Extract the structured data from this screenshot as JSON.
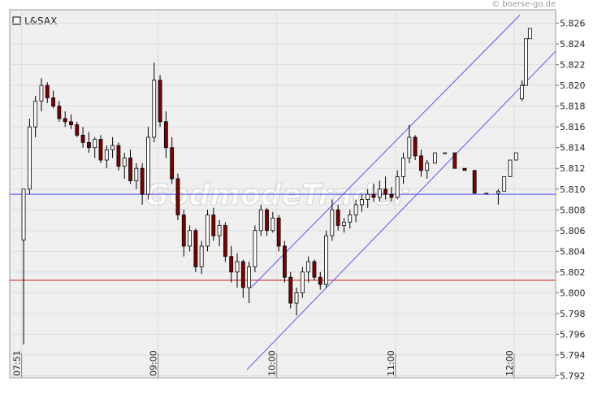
{
  "chart_data": {
    "type": "candlestick",
    "name": "L&SAX",
    "copyright": "© boerse-go.de",
    "watermark": "GodmodeTrader",
    "xlim": [
      465,
      741
    ],
    "xticks": [
      {
        "value": 471,
        "label": "07:51"
      },
      {
        "value": 540,
        "label": "09:00"
      },
      {
        "value": 600,
        "label": "10:00"
      },
      {
        "value": 660,
        "label": "11:00"
      },
      {
        "value": 720,
        "label": "12:00"
      }
    ],
    "ylim": [
      5.7918,
      5.8273
    ],
    "yticks": [
      5.792,
      5.794,
      5.796,
      5.798,
      {
        "value": 5.8,
        "label": "5.800"
      },
      5.802,
      5.804,
      5.806,
      5.808,
      {
        "value": 5.81,
        "label": "5.810"
      },
      5.812,
      5.814,
      5.816,
      5.818,
      {
        "value": 5.82,
        "label": "5.820"
      },
      5.822,
      5.824,
      5.826
    ],
    "grid": true,
    "up_color": "#ffffff",
    "down_color": "#800000",
    "x": [
      472,
      475,
      478,
      481,
      484,
      487,
      490,
      493,
      496,
      499,
      502,
      505,
      508,
      511,
      514,
      517,
      520,
      523,
      526,
      529,
      532,
      535,
      538,
      541,
      544,
      547,
      550,
      553,
      556,
      559,
      562,
      565,
      568,
      571,
      574,
      577,
      580,
      583,
      586,
      589,
      592,
      595,
      598,
      601,
      604,
      607,
      610,
      613,
      616,
      619,
      622,
      625,
      628,
      631,
      634,
      637,
      640,
      643,
      646,
      649,
      652,
      655,
      658,
      661,
      664,
      667,
      670,
      673,
      676,
      680,
      685,
      690,
      695,
      700,
      706,
      712,
      715,
      718,
      721,
      724,
      726,
      728
    ],
    "open": [
      5.8051,
      5.81,
      5.816,
      5.8185,
      5.82,
      5.8188,
      5.818,
      5.8168,
      5.8165,
      5.8162,
      5.8152,
      5.8145,
      5.814,
      5.8148,
      5.8128,
      5.8138,
      5.8142,
      5.8122,
      5.813,
      5.8108,
      5.812,
      5.8095,
      5.815,
      5.8205,
      5.8165,
      5.814,
      5.811,
      5.8075,
      5.8045,
      5.806,
      5.8025,
      5.8045,
      5.8075,
      5.8055,
      5.8065,
      5.8035,
      5.802,
      5.803,
      5.8005,
      5.8025,
      5.806,
      5.808,
      5.806,
      5.8072,
      5.8045,
      5.8015,
      5.799,
      5.8,
      5.802,
      5.803,
      5.8015,
      5.8008,
      5.8055,
      5.808,
      5.8065,
      5.8068,
      5.8075,
      5.8085,
      5.809,
      5.8095,
      5.8092,
      5.81,
      5.8095,
      5.8092,
      5.8112,
      5.813,
      5.815,
      5.8132,
      5.8118,
      5.8125,
      5.8135,
      5.8135,
      5.812,
      5.8118,
      5.8096,
      5.8096,
      5.8098,
      5.8112,
      5.8128,
      5.8187,
      5.82,
      5.8245
    ],
    "high": [
      5.81,
      5.8168,
      5.819,
      5.8207,
      5.8203,
      5.8195,
      5.8185,
      5.8175,
      5.8172,
      5.8165,
      5.816,
      5.8155,
      5.815,
      5.8152,
      5.8142,
      5.815,
      5.8145,
      5.8135,
      5.8138,
      5.8125,
      5.8125,
      5.816,
      5.8222,
      5.821,
      5.8175,
      5.815,
      5.8115,
      5.808,
      5.8065,
      5.8062,
      5.805,
      5.808,
      5.8082,
      5.807,
      5.8068,
      5.8045,
      5.8038,
      5.8032,
      5.803,
      5.8065,
      5.8085,
      5.8082,
      5.8078,
      5.8075,
      5.805,
      5.802,
      5.8005,
      5.8025,
      5.8035,
      5.8032,
      5.802,
      5.806,
      5.809,
      5.8085,
      5.8072,
      5.808,
      5.809,
      5.8095,
      5.81,
      5.8105,
      5.8108,
      5.8112,
      5.8102,
      5.8118,
      5.8135,
      5.8162,
      5.8152,
      5.8138,
      5.8128,
      5.8135,
      5.8135,
      5.8135,
      5.812,
      5.8118,
      5.8096,
      5.81,
      5.8112,
      5.8128,
      5.8135,
      5.8205,
      5.8245,
      5.8255
    ],
    "low": [
      5.795,
      5.8095,
      5.815,
      5.8175,
      5.8183,
      5.8178,
      5.8165,
      5.816,
      5.8158,
      5.815,
      5.814,
      5.8135,
      5.813,
      5.8125,
      5.812,
      5.813,
      5.8118,
      5.811,
      5.8105,
      5.81,
      5.8085,
      5.809,
      5.8145,
      5.816,
      5.813,
      5.8105,
      5.807,
      5.8035,
      5.804,
      5.802,
      5.8018,
      5.804,
      5.805,
      5.8045,
      5.803,
      5.801,
      5.8005,
      5.7995,
      5.799,
      5.802,
      5.8055,
      5.8055,
      5.8058,
      5.804,
      5.801,
      5.7985,
      5.7978,
      5.7995,
      5.801,
      5.8012,
      5.8003,
      5.8005,
      5.805,
      5.806,
      5.8058,
      5.8062,
      5.8068,
      5.8078,
      5.8082,
      5.8088,
      5.8088,
      5.809,
      5.8088,
      5.809,
      5.8105,
      5.8125,
      5.8128,
      5.8112,
      5.811,
      5.8125,
      5.8135,
      5.812,
      5.8118,
      5.8096,
      5.8096,
      5.8085,
      5.8098,
      5.8112,
      5.8128,
      5.8185,
      5.82,
      5.8245
    ],
    "close": [
      5.81,
      5.816,
      5.8185,
      5.82,
      5.8188,
      5.818,
      5.8168,
      5.8165,
      5.8162,
      5.8152,
      5.8145,
      5.814,
      5.8148,
      5.8128,
      5.8138,
      5.8142,
      5.8122,
      5.813,
      5.8108,
      5.812,
      5.8095,
      5.815,
      5.8205,
      5.8165,
      5.814,
      5.811,
      5.8075,
      5.8045,
      5.806,
      5.8025,
      5.8045,
      5.8075,
      5.8055,
      5.8065,
      5.8035,
      5.802,
      5.803,
      5.8005,
      5.8025,
      5.806,
      5.808,
      5.806,
      5.8072,
      5.8045,
      5.8015,
      5.799,
      5.8,
      5.802,
      5.803,
      5.8015,
      5.8008,
      5.8055,
      5.808,
      5.8065,
      5.8068,
      5.8075,
      5.8085,
      5.809,
      5.8095,
      5.8092,
      5.81,
      5.8095,
      5.8092,
      5.8112,
      5.813,
      5.815,
      5.8132,
      5.8118,
      5.8125,
      5.8135,
      5.8135,
      5.812,
      5.8118,
      5.8096,
      5.8096,
      5.8098,
      5.8112,
      5.8128,
      5.8135,
      5.82,
      5.8245,
      5.8255
    ],
    "hlines": [
      {
        "value": 5.8095,
        "color": "#4a4aff"
      },
      {
        "value": 5.8012,
        "color": "#d02020"
      }
    ],
    "trendlines": [
      {
        "x": [
          585,
          741
        ],
        "y": [
          5.7926,
          5.8233
        ],
        "color": "#5555ff"
      },
      {
        "x": [
          587,
          723
        ],
        "y": [
          5.8005,
          5.8268
        ],
        "color": "#5555ff"
      }
    ]
  }
}
